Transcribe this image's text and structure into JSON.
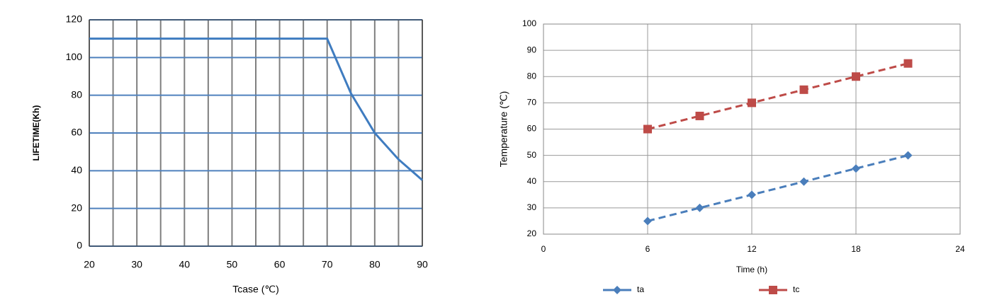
{
  "chart_data": [
    {
      "type": "line",
      "ylabel": "LIFETIME(Kh)",
      "xlabel": "Tcase (℃)",
      "x": [
        20,
        70,
        75,
        80,
        85,
        90
      ],
      "values": [
        110,
        110,
        81,
        60,
        46,
        35
      ],
      "color": "#3f7cc0",
      "xlim": [
        20,
        90
      ],
      "xticks": [
        20,
        30,
        40,
        50,
        60,
        70,
        80,
        90
      ],
      "xminorticks": [
        25,
        35,
        45,
        55,
        65,
        75,
        85
      ],
      "ylim": [
        0,
        120
      ],
      "yticks": [
        0,
        20,
        40,
        60,
        80,
        100,
        120
      ],
      "grid": true
    },
    {
      "type": "line",
      "ylabel": "Temperature (℃)",
      "xlabel": "Time (h)",
      "x": [
        6,
        9,
        12,
        15,
        18,
        21
      ],
      "series": [
        {
          "name": "ta",
          "color": "#4a7ebb",
          "marker": "diamond",
          "values": [
            25,
            30,
            35,
            40,
            45,
            50
          ]
        },
        {
          "name": "tc",
          "color": "#be4b48",
          "marker": "square",
          "values": [
            60,
            65,
            70,
            75,
            80,
            85
          ]
        }
      ],
      "xlim": [
        0,
        24
      ],
      "xticks": [
        0,
        6,
        12,
        18,
        24
      ],
      "ylim": [
        20,
        100
      ],
      "yticks": [
        20,
        30,
        40,
        50,
        60,
        70,
        80,
        90,
        100
      ],
      "grid": true,
      "legend": "bottom"
    }
  ]
}
